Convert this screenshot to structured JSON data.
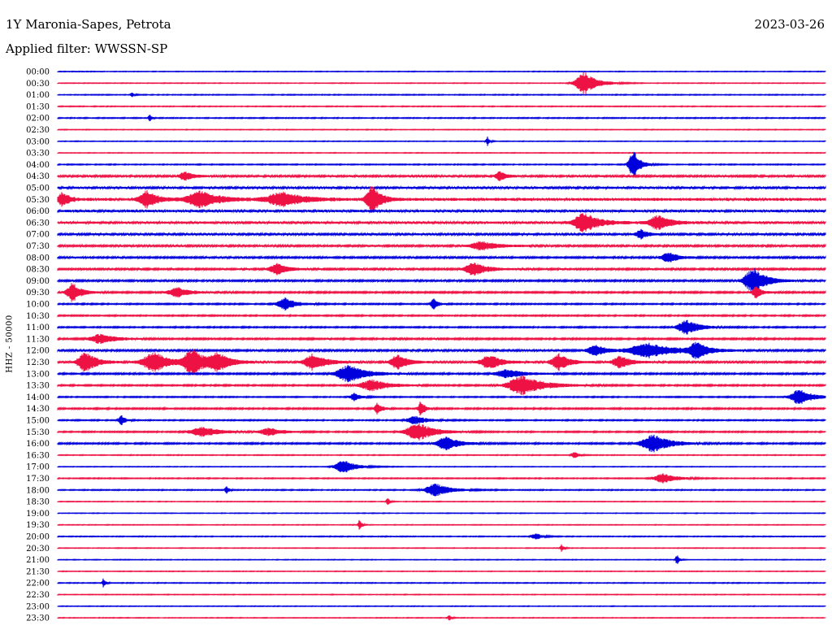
{
  "header": {
    "title": "1Y Maronia-Sapes, Petrota",
    "date": "2023-03-26",
    "filter": "Applied filter: WWSSN-SP"
  },
  "colors": {
    "line_a": "#0000dd",
    "line_b": "#ee1144"
  },
  "chart_data": {
    "type": "line",
    "title": "1Y Maronia-Sapes, Petrota",
    "date": "2023-03-26",
    "ylabel": "HHZ - 50000",
    "row_labels": [
      "00:00",
      "00:30",
      "01:00",
      "01:30",
      "02:00",
      "02:30",
      "03:00",
      "03:30",
      "04:00",
      "04:30",
      "05:00",
      "05:30",
      "06:00",
      "06:30",
      "07:00",
      "07:30",
      "08:00",
      "08:30",
      "09:00",
      "09:30",
      "10:00",
      "10:30",
      "11:00",
      "11:30",
      "12:00",
      "12:30",
      "13:00",
      "13:30",
      "14:00",
      "14:30",
      "15:00",
      "15:30",
      "16:00",
      "16:30",
      "17:00",
      "17:30",
      "18:00",
      "18:30",
      "19:00",
      "19:30",
      "20:00",
      "20:30",
      "21:00",
      "21:30",
      "22:00",
      "22:30",
      "23:00",
      "23:30"
    ],
    "x_range_minutes": [
      0,
      30
    ],
    "trace_noise": [
      0.4,
      0.4,
      0.5,
      0.5,
      0.6,
      0.4,
      0.4,
      0.4,
      0.6,
      1.2,
      1.4,
      1.8,
      1.5,
      1.5,
      1.3,
      1.2,
      1.1,
      1.1,
      1.1,
      1.0,
      0.8,
      0.8,
      0.8,
      1.0,
      1.2,
      1.2,
      1.0,
      0.9,
      0.7,
      0.9,
      0.7,
      0.8,
      0.9,
      0.5,
      0.4,
      0.6,
      0.6,
      0.4,
      0.4,
      0.4,
      0.5,
      0.4,
      0.4,
      0.4,
      0.5,
      0.4,
      0.4,
      0.4
    ],
    "events": [
      {
        "row": 1,
        "min": 20.6,
        "amp": 14,
        "dur": 0.6
      },
      {
        "row": 2,
        "min": 2.9,
        "amp": 3,
        "dur": 0.1
      },
      {
        "row": 4,
        "min": 3.6,
        "amp": 5,
        "dur": 0.1
      },
      {
        "row": 6,
        "min": 16.8,
        "amp": 6,
        "dur": 0.1
      },
      {
        "row": 8,
        "min": 22.5,
        "amp": 20,
        "dur": 0.3
      },
      {
        "row": 9,
        "min": 5.0,
        "amp": 5,
        "dur": 0.4
      },
      {
        "row": 9,
        "min": 17.3,
        "amp": 6,
        "dur": 0.3
      },
      {
        "row": 11,
        "min": 0.2,
        "amp": 9,
        "dur": 0.3
      },
      {
        "row": 11,
        "min": 3.5,
        "amp": 10,
        "dur": 0.5
      },
      {
        "row": 11,
        "min": 5.6,
        "amp": 10,
        "dur": 0.9
      },
      {
        "row": 11,
        "min": 8.8,
        "amp": 9,
        "dur": 1.0
      },
      {
        "row": 11,
        "min": 12.3,
        "amp": 18,
        "dur": 0.4
      },
      {
        "row": 13,
        "min": 20.6,
        "amp": 12,
        "dur": 0.7
      },
      {
        "row": 13,
        "min": 23.5,
        "amp": 9,
        "dur": 0.6
      },
      {
        "row": 14,
        "min": 22.8,
        "amp": 6,
        "dur": 0.3
      },
      {
        "row": 15,
        "min": 16.6,
        "amp": 5,
        "dur": 0.8
      },
      {
        "row": 16,
        "min": 23.9,
        "amp": 6,
        "dur": 0.5
      },
      {
        "row": 17,
        "min": 8.6,
        "amp": 7,
        "dur": 0.5
      },
      {
        "row": 17,
        "min": 16.3,
        "amp": 8,
        "dur": 0.6
      },
      {
        "row": 18,
        "min": 27.2,
        "amp": 16,
        "dur": 0.6
      },
      {
        "row": 19,
        "min": 0.6,
        "amp": 12,
        "dur": 0.4
      },
      {
        "row": 19,
        "min": 4.7,
        "amp": 6,
        "dur": 0.6
      },
      {
        "row": 19,
        "min": 27.3,
        "amp": 7,
        "dur": 0.3
      },
      {
        "row": 20,
        "min": 8.9,
        "amp": 8,
        "dur": 0.5
      },
      {
        "row": 20,
        "min": 14.7,
        "amp": 7,
        "dur": 0.2
      },
      {
        "row": 22,
        "min": 24.6,
        "amp": 9,
        "dur": 0.6
      },
      {
        "row": 23,
        "min": 1.7,
        "amp": 6,
        "dur": 0.7
      },
      {
        "row": 24,
        "min": 21.0,
        "amp": 7,
        "dur": 0.5
      },
      {
        "row": 24,
        "min": 23.1,
        "amp": 9,
        "dur": 1.2
      },
      {
        "row": 24,
        "min": 25.0,
        "amp": 10,
        "dur": 0.5
      },
      {
        "row": 25,
        "min": 1.1,
        "amp": 14,
        "dur": 0.5
      },
      {
        "row": 25,
        "min": 3.8,
        "amp": 12,
        "dur": 0.8
      },
      {
        "row": 25,
        "min": 5.3,
        "amp": 16,
        "dur": 0.6
      },
      {
        "row": 25,
        "min": 6.3,
        "amp": 10,
        "dur": 0.6
      },
      {
        "row": 25,
        "min": 10.0,
        "amp": 10,
        "dur": 0.6
      },
      {
        "row": 25,
        "min": 13.3,
        "amp": 9,
        "dur": 0.5
      },
      {
        "row": 25,
        "min": 16.9,
        "amp": 9,
        "dur": 0.6
      },
      {
        "row": 25,
        "min": 19.6,
        "amp": 10,
        "dur": 0.5
      },
      {
        "row": 25,
        "min": 22.0,
        "amp": 8,
        "dur": 0.5
      },
      {
        "row": 26,
        "min": 11.4,
        "amp": 11,
        "dur": 0.8
      },
      {
        "row": 26,
        "min": 17.6,
        "amp": 5,
        "dur": 0.8
      },
      {
        "row": 27,
        "min": 18.2,
        "amp": 12,
        "dur": 1.0
      },
      {
        "row": 27,
        "min": 12.3,
        "amp": 7,
        "dur": 0.8
      },
      {
        "row": 28,
        "min": 29.0,
        "amp": 10,
        "dur": 0.6
      },
      {
        "row": 28,
        "min": 11.6,
        "amp": 5,
        "dur": 0.3
      },
      {
        "row": 29,
        "min": 12.5,
        "amp": 8,
        "dur": 0.2
      },
      {
        "row": 29,
        "min": 14.2,
        "amp": 9,
        "dur": 0.2
      },
      {
        "row": 30,
        "min": 2.5,
        "amp": 6,
        "dur": 0.2
      },
      {
        "row": 30,
        "min": 14.0,
        "amp": 5,
        "dur": 0.6
      },
      {
        "row": 31,
        "min": 14.1,
        "amp": 11,
        "dur": 0.8
      },
      {
        "row": 31,
        "min": 5.7,
        "amp": 6,
        "dur": 0.8
      },
      {
        "row": 31,
        "min": 8.3,
        "amp": 5,
        "dur": 0.6
      },
      {
        "row": 32,
        "min": 15.2,
        "amp": 9,
        "dur": 0.6
      },
      {
        "row": 32,
        "min": 23.3,
        "amp": 11,
        "dur": 0.8
      },
      {
        "row": 33,
        "min": 20.2,
        "amp": 4,
        "dur": 0.2
      },
      {
        "row": 34,
        "min": 11.2,
        "amp": 8,
        "dur": 0.6
      },
      {
        "row": 35,
        "min": 23.7,
        "amp": 6,
        "dur": 0.6
      },
      {
        "row": 36,
        "min": 14.8,
        "amp": 8,
        "dur": 0.7
      },
      {
        "row": 36,
        "min": 6.6,
        "amp": 6,
        "dur": 0.1
      },
      {
        "row": 37,
        "min": 12.9,
        "amp": 5,
        "dur": 0.1
      },
      {
        "row": 39,
        "min": 11.8,
        "amp": 7,
        "dur": 0.1
      },
      {
        "row": 40,
        "min": 18.7,
        "amp": 4,
        "dur": 0.3
      },
      {
        "row": 41,
        "min": 19.7,
        "amp": 5,
        "dur": 0.1
      },
      {
        "row": 42,
        "min": 24.2,
        "amp": 7,
        "dur": 0.1
      },
      {
        "row": 44,
        "min": 1.8,
        "amp": 6,
        "dur": 0.1
      },
      {
        "row": 47,
        "min": 15.3,
        "amp": 4,
        "dur": 0.1
      }
    ]
  }
}
